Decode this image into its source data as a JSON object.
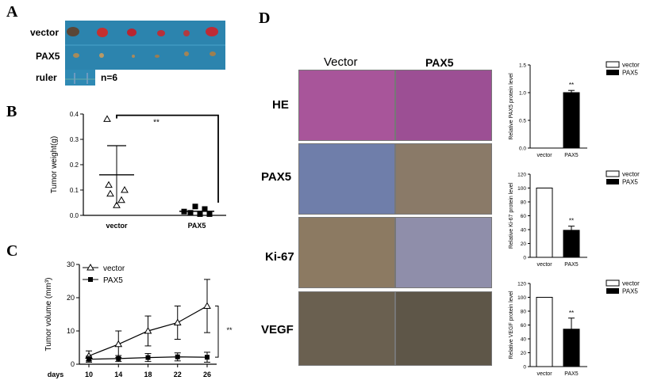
{
  "panels": {
    "A": {
      "letter": "A",
      "rows": [
        "vector",
        "PAX5",
        "ruler"
      ],
      "n_label": "n=6",
      "colors": {
        "background": "#2b86b0",
        "tumor_vector": "#b8242e",
        "tumor_pax5": "#a88a55"
      }
    },
    "B": {
      "letter": "B"
    },
    "C": {
      "letter": "C"
    },
    "D": {
      "letter": "D",
      "columns": [
        "Vector",
        "PAX5"
      ],
      "stains": [
        "HE",
        "PAX5",
        "Ki-67",
        "VEGF"
      ],
      "colors": {
        "HE_vector": "#a8559a",
        "HE_pax5": "#9c4f94",
        "PAX5_vector": "#6f7eaa",
        "PAX5_pax5": "#8a7a68",
        "Ki67_vector": "#8c7a62",
        "Ki67_pax5": "#8f8eaa",
        "VEGF_vector": "#6a6050",
        "VEGF_pax5": "#5e5648"
      }
    }
  },
  "chart_data": [
    {
      "id": "B",
      "type": "scatter",
      "ylabel": "Tumor weight(g)",
      "categories": [
        "vector",
        "PAX5"
      ],
      "ylim": [
        0,
        0.4
      ],
      "yticks": [
        "0.0",
        "0.1",
        "0.2",
        "0.3",
        "0.4"
      ],
      "series": [
        {
          "name": "vector",
          "values": [
            0.38,
            0.12,
            0.1,
            0.085,
            0.06,
            0.04
          ],
          "mean": 0.16,
          "sd_upper": 0.275,
          "sd_lower": 0.045
        },
        {
          "name": "PAX5",
          "values": [
            0.035,
            0.025,
            0.015,
            0.01,
            0.005,
            0.005
          ],
          "mean": 0.016,
          "sd_upper": 0.026,
          "sd_lower": 0.006
        }
      ],
      "significance": "**"
    },
    {
      "id": "C",
      "type": "line",
      "ylabel": "Tumor volume (mm³)",
      "xlabel": "days",
      "x": [
        10,
        14,
        18,
        22,
        26
      ],
      "ylim": [
        0,
        30
      ],
      "yticks": [
        "0",
        "10",
        "20",
        "30"
      ],
      "series": [
        {
          "name": "vector",
          "values": [
            2.5,
            6,
            10,
            12.5,
            17.5
          ],
          "err": [
            1.5,
            4,
            4.5,
            5,
            8
          ]
        },
        {
          "name": "PAX5",
          "values": [
            1.5,
            1.7,
            2,
            2.2,
            2.1
          ],
          "err": [
            0.9,
            0.9,
            1.2,
            1.2,
            1.5
          ]
        }
      ],
      "legend": [
        "vector",
        "PAX5"
      ],
      "significance": "**"
    },
    {
      "id": "D1",
      "type": "bar",
      "ylabel": "Relative PAX5 protein level",
      "categories": [
        "vector",
        "PAX5"
      ],
      "values": [
        0,
        1.0
      ],
      "err": [
        0,
        0.04
      ],
      "ylim": [
        0,
        1.5
      ],
      "yticks": [
        "0.0",
        "0.5",
        "1.0",
        "1.5"
      ],
      "legend": [
        "vector",
        "PAX5"
      ],
      "significance": "**"
    },
    {
      "id": "D2",
      "type": "bar",
      "ylabel": "Relative Ki-67 protein level",
      "categories": [
        "vector",
        "PAX5"
      ],
      "values": [
        100,
        39
      ],
      "err": [
        0,
        6
      ],
      "ylim": [
        0,
        120
      ],
      "yticks": [
        "0",
        "20",
        "40",
        "60",
        "80",
        "100",
        "120"
      ],
      "legend": [
        "vector",
        "PAX5"
      ],
      "significance": "**"
    },
    {
      "id": "D3",
      "type": "bar",
      "ylabel": "Relative VEGF protein level",
      "categories": [
        "vector",
        "PAX5"
      ],
      "values": [
        100,
        54
      ],
      "err": [
        0,
        16
      ],
      "ylim": [
        0,
        120
      ],
      "yticks": [
        "0",
        "20",
        "40",
        "60",
        "80",
        "100",
        "120"
      ],
      "legend": [
        "vector",
        "PAX5"
      ],
      "significance": "**"
    }
  ]
}
